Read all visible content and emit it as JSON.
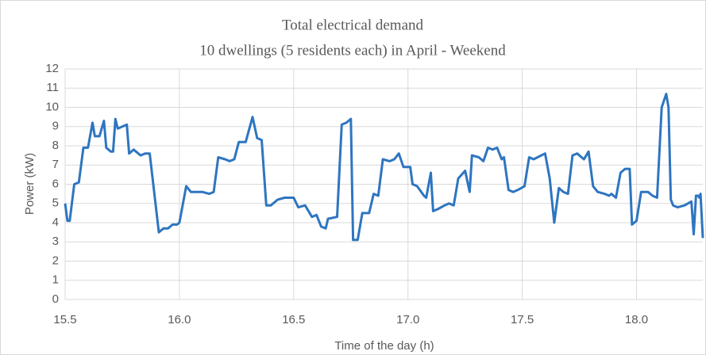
{
  "chart_data": {
    "type": "line",
    "title": "Total electrical demand",
    "subtitle": "10 dwellings (5 residents each) in April - Weekend",
    "x_label": "Time of the day (h)",
    "y_label": "Power (kW)",
    "xlim": [
      15.5,
      18.29
    ],
    "xticks": [
      15.5,
      {
        "value": 16,
        "label": "16.0"
      },
      16.5,
      {
        "value": 17,
        "label": "17.0"
      },
      17.5,
      {
        "value": 18,
        "label": "18.0"
      }
    ],
    "ylim": [
      0,
      12
    ],
    "yticks": [
      0,
      1,
      2,
      3,
      4,
      5,
      6,
      7,
      8,
      9,
      10,
      11,
      12
    ],
    "grid": true,
    "x": [
      15.5,
      15.51,
      15.52,
      15.54,
      15.56,
      15.58,
      15.6,
      15.62,
      15.63,
      15.65,
      15.67,
      15.68,
      15.7,
      15.71,
      15.72,
      15.73,
      15.77,
      15.78,
      15.8,
      15.83,
      15.85,
      15.87,
      15.91,
      15.93,
      15.95,
      15.97,
      15.99,
      16.0,
      16.03,
      16.05,
      16.07,
      16.1,
      16.13,
      16.15,
      16.17,
      16.2,
      16.22,
      16.24,
      16.26,
      16.29,
      16.32,
      16.34,
      16.36,
      16.38,
      16.4,
      16.43,
      16.46,
      16.5,
      16.52,
      16.55,
      16.58,
      16.6,
      16.62,
      16.64,
      16.65,
      16.69,
      16.71,
      16.73,
      16.75,
      16.76,
      16.78,
      16.8,
      16.83,
      16.85,
      16.87,
      16.89,
      16.92,
      16.94,
      16.96,
      16.98,
      17.01,
      17.02,
      17.04,
      17.07,
      17.08,
      17.1,
      17.11,
      17.13,
      17.16,
      17.18,
      17.2,
      17.22,
      17.25,
      17.27,
      17.28,
      17.31,
      17.33,
      17.35,
      17.37,
      17.39,
      17.41,
      17.42,
      17.44,
      17.46,
      17.48,
      17.51,
      17.53,
      17.55,
      17.6,
      17.62,
      17.64,
      17.66,
      17.68,
      17.7,
      17.72,
      17.74,
      17.77,
      17.79,
      17.81,
      17.83,
      17.86,
      17.88,
      17.89,
      17.91,
      17.93,
      17.95,
      17.97,
      17.98,
      18.0,
      18.02,
      18.05,
      18.07,
      18.09,
      18.11,
      18.13,
      18.14,
      18.15,
      18.16,
      18.18,
      18.21,
      18.24,
      18.25,
      18.26,
      18.27,
      18.275,
      18.28,
      18.29
    ],
    "series": [
      {
        "name": "Total electrical demand",
        "color": "#2e75c0",
        "values": [
          5.0,
          4.1,
          4.1,
          6.0,
          6.1,
          7.9,
          7.9,
          9.2,
          8.5,
          8.5,
          9.3,
          7.9,
          7.7,
          7.7,
          9.4,
          8.9,
          9.1,
          7.6,
          7.8,
          7.5,
          7.6,
          7.6,
          3.5,
          3.7,
          3.7,
          3.9,
          3.9,
          4.0,
          5.9,
          5.6,
          5.6,
          5.6,
          5.5,
          5.6,
          7.4,
          7.3,
          7.2,
          7.3,
          8.2,
          8.2,
          9.5,
          8.4,
          8.3,
          4.9,
          4.9,
          5.2,
          5.3,
          5.3,
          4.8,
          4.9,
          4.3,
          4.4,
          3.8,
          3.7,
          4.2,
          4.3,
          9.1,
          9.2,
          9.4,
          3.1,
          3.1,
          4.5,
          4.5,
          5.5,
          5.4,
          7.3,
          7.2,
          7.3,
          7.6,
          6.9,
          6.9,
          6.0,
          5.9,
          5.4,
          5.3,
          6.6,
          4.6,
          4.7,
          4.9,
          5.0,
          4.9,
          6.3,
          6.7,
          5.6,
          7.5,
          7.4,
          7.2,
          7.9,
          7.8,
          7.9,
          7.3,
          7.4,
          5.7,
          5.6,
          5.7,
          5.9,
          7.4,
          7.3,
          7.6,
          6.3,
          4.0,
          5.8,
          5.6,
          5.5,
          7.5,
          7.6,
          7.3,
          7.7,
          5.9,
          5.6,
          5.5,
          5.4,
          5.5,
          5.3,
          6.6,
          6.8,
          6.8,
          3.9,
          4.1,
          5.6,
          5.6,
          5.4,
          5.3,
          10.0,
          10.7,
          10.0,
          5.2,
          4.9,
          4.8,
          4.9,
          5.1,
          3.4,
          5.4,
          5.4,
          5.3,
          5.5,
          3.2
        ]
      }
    ]
  }
}
